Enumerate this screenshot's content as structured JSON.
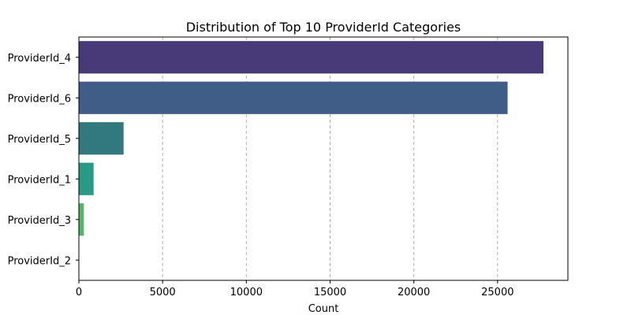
{
  "chart_data": {
    "type": "bar",
    "orientation": "horizontal",
    "title": "Distribution of Top 10 ProviderId Categories",
    "xlabel": "Count",
    "ylabel": "",
    "categories": [
      "ProviderId_4",
      "ProviderId_6",
      "ProviderId_5",
      "ProviderId_1",
      "ProviderId_3",
      "ProviderId_2"
    ],
    "values": [
      27740,
      25600,
      2670,
      880,
      300,
      20
    ],
    "xlim": [
      0,
      29200
    ],
    "xticks": [
      0,
      5000,
      10000,
      15000,
      20000,
      25000
    ],
    "grid": "x-dashed",
    "colors": [
      "#483a78",
      "#3f5d87",
      "#31787f",
      "#2b9a84",
      "#55b470",
      "#7cc35e"
    ]
  }
}
